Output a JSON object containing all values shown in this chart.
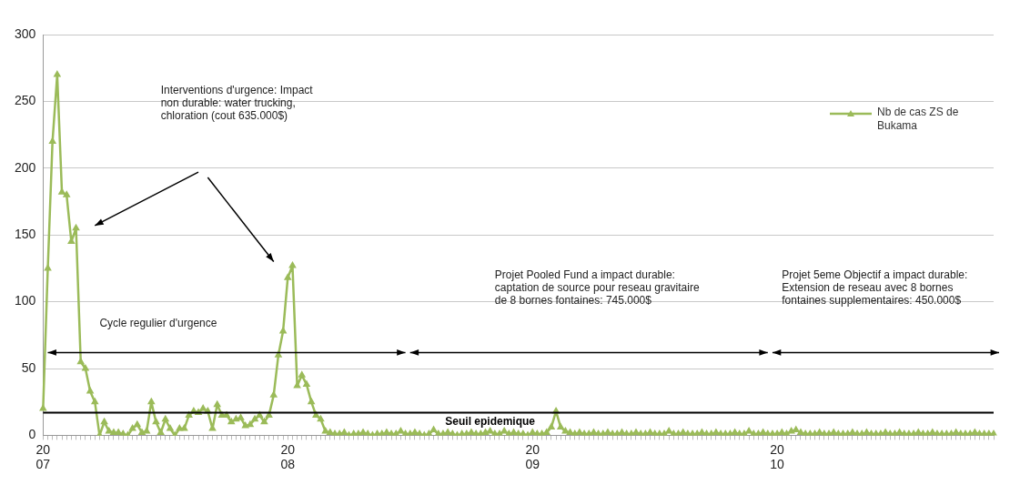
{
  "chart_data": {
    "type": "line",
    "categories": [
      "2007",
      null,
      null,
      null,
      null,
      null,
      null,
      null,
      null,
      null,
      null,
      null,
      null,
      null,
      null,
      null,
      null,
      null,
      null,
      null,
      null,
      null,
      null,
      null,
      null,
      null,
      null,
      null,
      null,
      null,
      null,
      null,
      null,
      null,
      null,
      null,
      null,
      null,
      null,
      null,
      null,
      null,
      null,
      null,
      null,
      null,
      null,
      null,
      null,
      null,
      null,
      null,
      "2008",
      null,
      null,
      null,
      null,
      null,
      null,
      null,
      null,
      null,
      null,
      null,
      null,
      null,
      null,
      null,
      null,
      null,
      null,
      null,
      null,
      null,
      null,
      null,
      null,
      null,
      null,
      null,
      null,
      null,
      null,
      null,
      null,
      null,
      null,
      null,
      null,
      null,
      null,
      null,
      null,
      null,
      null,
      null,
      null,
      null,
      null,
      null,
      null,
      null,
      null,
      null,
      "2009",
      null,
      null,
      null,
      null,
      null,
      null,
      null,
      null,
      null,
      null,
      null,
      null,
      null,
      null,
      null,
      null,
      null,
      null,
      null,
      null,
      null,
      null,
      null,
      null,
      null,
      null,
      null,
      null,
      null,
      null,
      null,
      null,
      null,
      null,
      null,
      null,
      null,
      null,
      null,
      null,
      null,
      null,
      null,
      null,
      null,
      null,
      null,
      null,
      null,
      null,
      null,
      "2010",
      null,
      null,
      null,
      null,
      null,
      null,
      null,
      null,
      null,
      null,
      null,
      null,
      null,
      null,
      null,
      null,
      null,
      null,
      null,
      null,
      null,
      null,
      null,
      null,
      null,
      null,
      null,
      null,
      null,
      null,
      null,
      null,
      null,
      null,
      null,
      null,
      null,
      null,
      null,
      null,
      null,
      null,
      null,
      null,
      null,
      null
    ],
    "series": [
      {
        "name": "Nb de cas ZS de Bukama",
        "color": "#9bbb59",
        "values": [
          20,
          125,
          220,
          270,
          182,
          180,
          145,
          155,
          55,
          50,
          33,
          25,
          0,
          10,
          3,
          2,
          2,
          1,
          0,
          5,
          8,
          2,
          3,
          25,
          10,
          2,
          12,
          5,
          0,
          5,
          5,
          15,
          18,
          17,
          20,
          18,
          5,
          23,
          15,
          15,
          10,
          12,
          13,
          7,
          8,
          12,
          15,
          10,
          15,
          30,
          60,
          78,
          118,
          127,
          37,
          45,
          38,
          25,
          15,
          12,
          3,
          2,
          1,
          1,
          2,
          0,
          1,
          1,
          2,
          1,
          0,
          1,
          1,
          2,
          1,
          1,
          3,
          1,
          1,
          2,
          1,
          0,
          1,
          4,
          1,
          1,
          2,
          1,
          0,
          1,
          1,
          2,
          1,
          1,
          2,
          3,
          1,
          1,
          3,
          1,
          2,
          1,
          1,
          0,
          2,
          1,
          1,
          2,
          6,
          18,
          6,
          3,
          2,
          1,
          2,
          1,
          1,
          2,
          1,
          1,
          2,
          1,
          1,
          2,
          1,
          1,
          2,
          1,
          1,
          2,
          1,
          1,
          1,
          3,
          1,
          1,
          2,
          1,
          1,
          1,
          2,
          1,
          1,
          2,
          1,
          1,
          1,
          2,
          1,
          1,
          3,
          1,
          1,
          2,
          1,
          1,
          1,
          2,
          1,
          3,
          4,
          2,
          1,
          1,
          1,
          2,
          1,
          1,
          2,
          1,
          1,
          1,
          2,
          1,
          1,
          2,
          1,
          1,
          1,
          2,
          1,
          1,
          2,
          1,
          1,
          1,
          2,
          1,
          1,
          2,
          1,
          1,
          1,
          1,
          2,
          1,
          1,
          1,
          2,
          1,
          1,
          1,
          1
        ]
      }
    ],
    "ylim": [
      0,
      300
    ],
    "yticks": [
      0,
      50,
      100,
      150,
      200,
      250,
      300
    ],
    "grid": "y",
    "legend": "top right",
    "marker": "triangle",
    "line_style": "solid",
    "ref_lines": [
      {
        "axis": "y",
        "value": 17,
        "label": "Seuil epidemique",
        "color": "#000000"
      }
    ],
    "annotations": [
      "Interventions d'urgence: Impact non durable: water trucking, chloration (cout 635.000$)",
      "Cycle regulier d'urgence",
      "Projet Pooled Fund a impact durable: captation de source pour reseau gravitaire de 8 bornes fontaines: 745.000$",
      "Projet 5eme Objectif a impact durable: Extension de reseau avec 8 bornes fontaines supplementaires: 450.000$"
    ]
  }
}
